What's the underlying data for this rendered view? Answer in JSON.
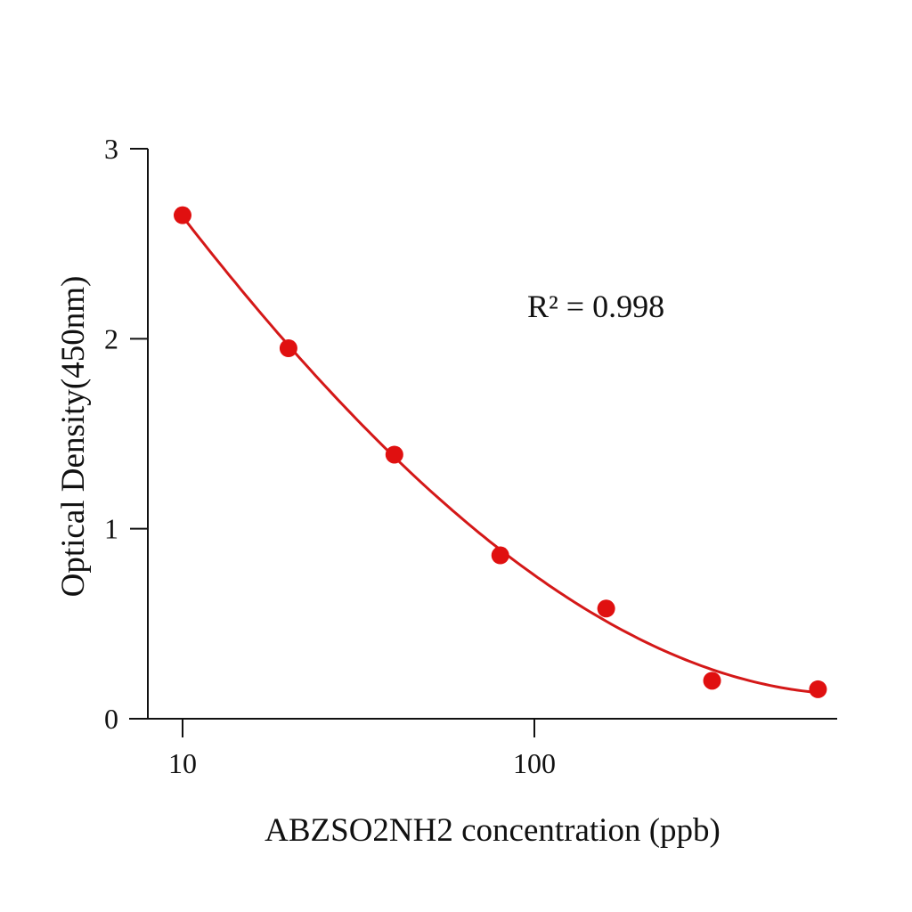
{
  "chart_data": {
    "type": "scatter",
    "title": "",
    "xlabel": "ABZSO2NH2 concentration (ppb)",
    "ylabel": "Optical Density(450nm)",
    "x_scale": "log",
    "xlim": [
      8,
      730
    ],
    "ylim": [
      0,
      3
    ],
    "x_ticks": [
      10,
      100
    ],
    "x_tick_labels": [
      "10",
      "100"
    ],
    "y_ticks": [
      0,
      1,
      2,
      3
    ],
    "y_tick_labels": [
      "0",
      "1",
      "2",
      "3"
    ],
    "grid": false,
    "annotation": "R² = 0.998",
    "color": "#e01010",
    "curve_color": "#d41818",
    "series": [
      {
        "x": [
          10,
          20,
          40,
          80,
          160,
          320,
          640
        ],
        "y": [
          2.65,
          1.95,
          1.39,
          0.86,
          0.58,
          0.2,
          0.155
        ]
      }
    ]
  }
}
